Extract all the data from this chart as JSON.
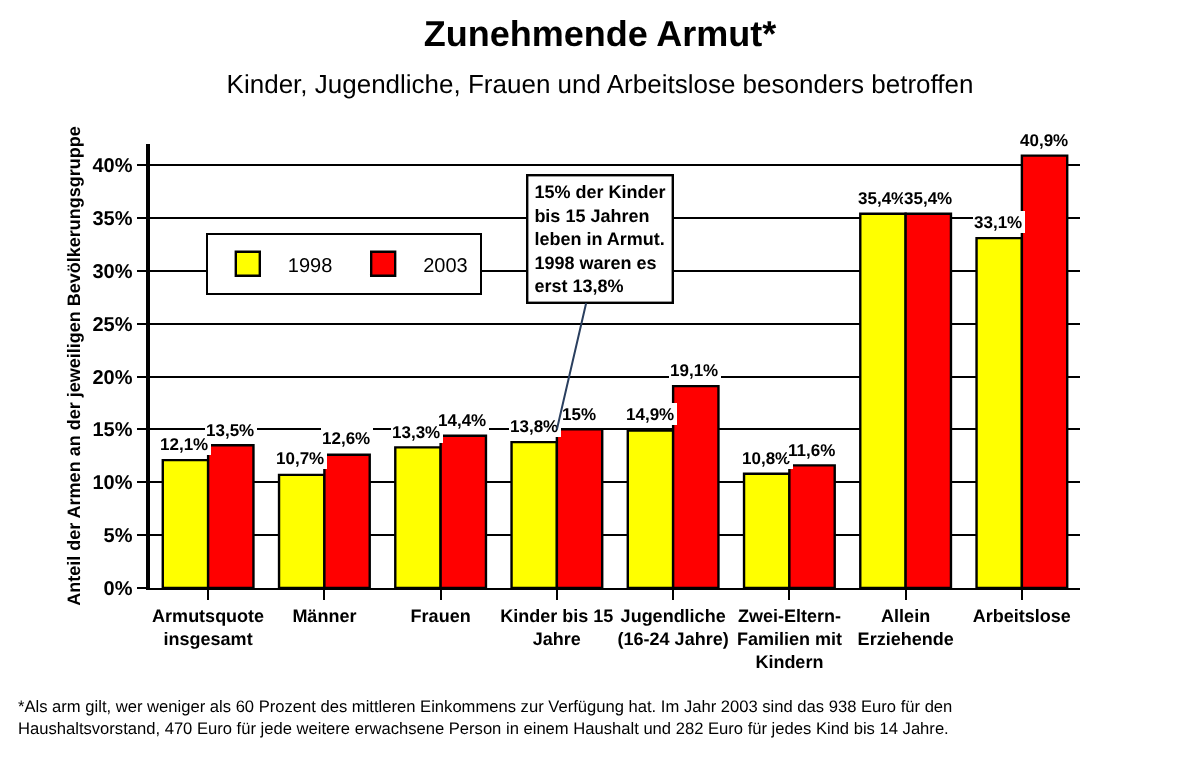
{
  "chart_data": {
    "type": "bar",
    "title": "Zunehmende Armut*",
    "subtitle": "Kinder, Jugendliche, Frauen und Arbeitslose besonders betroffen",
    "ylabel": "Anteil der Armen an der jeweiligen Bevölkerungsgruppe",
    "categories": [
      "Armutsquote\ninsgesamt",
      "Männer",
      "Frauen",
      "Kinder bis 15\nJahre",
      "Jugendliche\n(16-24 Jahre)",
      "Zwei-Eltern-\nFamilien mit\nKindern",
      "Allein\nErziehende",
      "Arbeitslose"
    ],
    "series": [
      {
        "name": "1998",
        "color": "#ffff00",
        "values": [
          12.1,
          10.7,
          13.3,
          13.8,
          14.9,
          10.8,
          35.4,
          33.1
        ],
        "value_labels": [
          "12,1%",
          "10,7%",
          "13,3%",
          "13,8%",
          "14,9%",
          "10,8%",
          "35,4%",
          "33,1%"
        ]
      },
      {
        "name": "2003",
        "color": "#ff0000",
        "values": [
          13.5,
          12.6,
          14.4,
          15,
          19.1,
          11.6,
          35.4,
          40.9
        ],
        "value_labels": [
          "13,5%",
          "12,6%",
          "14,4%",
          "15%",
          "19,1%",
          "11,6%",
          "35,4%",
          "40,9%"
        ]
      }
    ],
    "ylim": [
      0,
      42
    ],
    "yticks": [
      {
        "value": 0,
        "label": "0%"
      },
      {
        "value": 5,
        "label": "5%"
      },
      {
        "value": 10,
        "label": "10%"
      },
      {
        "value": 15,
        "label": "15%"
      },
      {
        "value": 20,
        "label": "20%"
      },
      {
        "value": 25,
        "label": "25%"
      },
      {
        "value": 30,
        "label": "30%"
      },
      {
        "value": 35,
        "label": "35%"
      },
      {
        "value": 40,
        "label": "40%"
      }
    ],
    "grid": "y",
    "legend": "top left",
    "annotations": [
      {
        "text": "15% der Kinder\nbis 15 Jahren\nleben in Armut.\n1998 waren es\nerst 13,8%",
        "x": "Kinder bis 15\nJahre",
        "y": 15
      },
      "*Als arm gilt, wer weniger als 60 Prozent des mittleren Einkommens zur Verfügung hat. Im Jahr 2003 sind das 938 Euro für den\nHaushaltsvorstand, 470 Euro für jede weitere erwachsene Person in einem Haushalt und 282 Euro für jedes Kind bis 14 Jahre."
    ]
  }
}
